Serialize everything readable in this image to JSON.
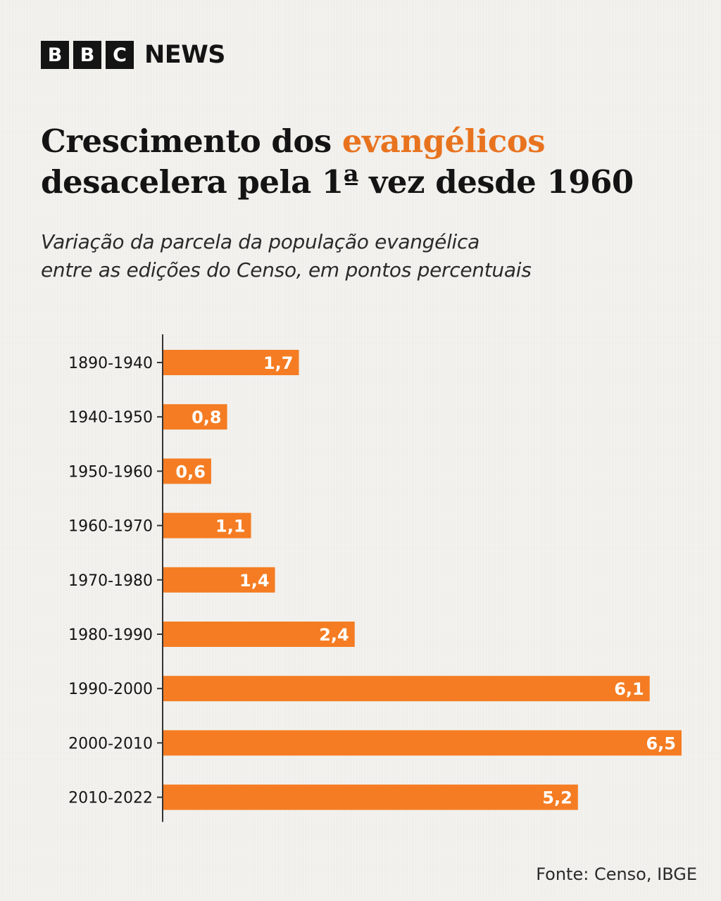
{
  "brand": {
    "blocks": [
      "B",
      "B",
      "C"
    ],
    "word": "NEWS"
  },
  "header": {
    "title_part1": "Crescimento dos ",
    "title_highlight": "evangélicos",
    "title_part2": "desacelera pela 1ª vez desde 1960",
    "subtitle_line1": "Variação da parcela da população evangélica",
    "subtitle_line2": "entre as edições do Censo, em pontos percentuais"
  },
  "colors": {
    "bar": "#f57c22",
    "highlight": "#e8731f",
    "axis": "#333333",
    "text": "#141414"
  },
  "chart_data": {
    "type": "bar",
    "orientation": "horizontal",
    "categories": [
      "1890-1940",
      "1940-1950",
      "1950-1960",
      "1960-1970",
      "1970-1980",
      "1980-1990",
      "1990-2000",
      "2000-2010",
      "2010-2022"
    ],
    "values": [
      1.7,
      0.8,
      0.6,
      1.1,
      1.4,
      2.4,
      6.1,
      6.5,
      5.2
    ],
    "value_labels": [
      "1,7",
      "0,8",
      "0,6",
      "1,1",
      "1,4",
      "2,4",
      "6,1",
      "6,5",
      "5,2"
    ],
    "xlim": [
      0,
      6.5
    ],
    "grid": false,
    "legend": "none",
    "title": "",
    "xlabel": "",
    "ylabel": ""
  },
  "footer": {
    "source": "Fonte: Censo, IBGE"
  }
}
